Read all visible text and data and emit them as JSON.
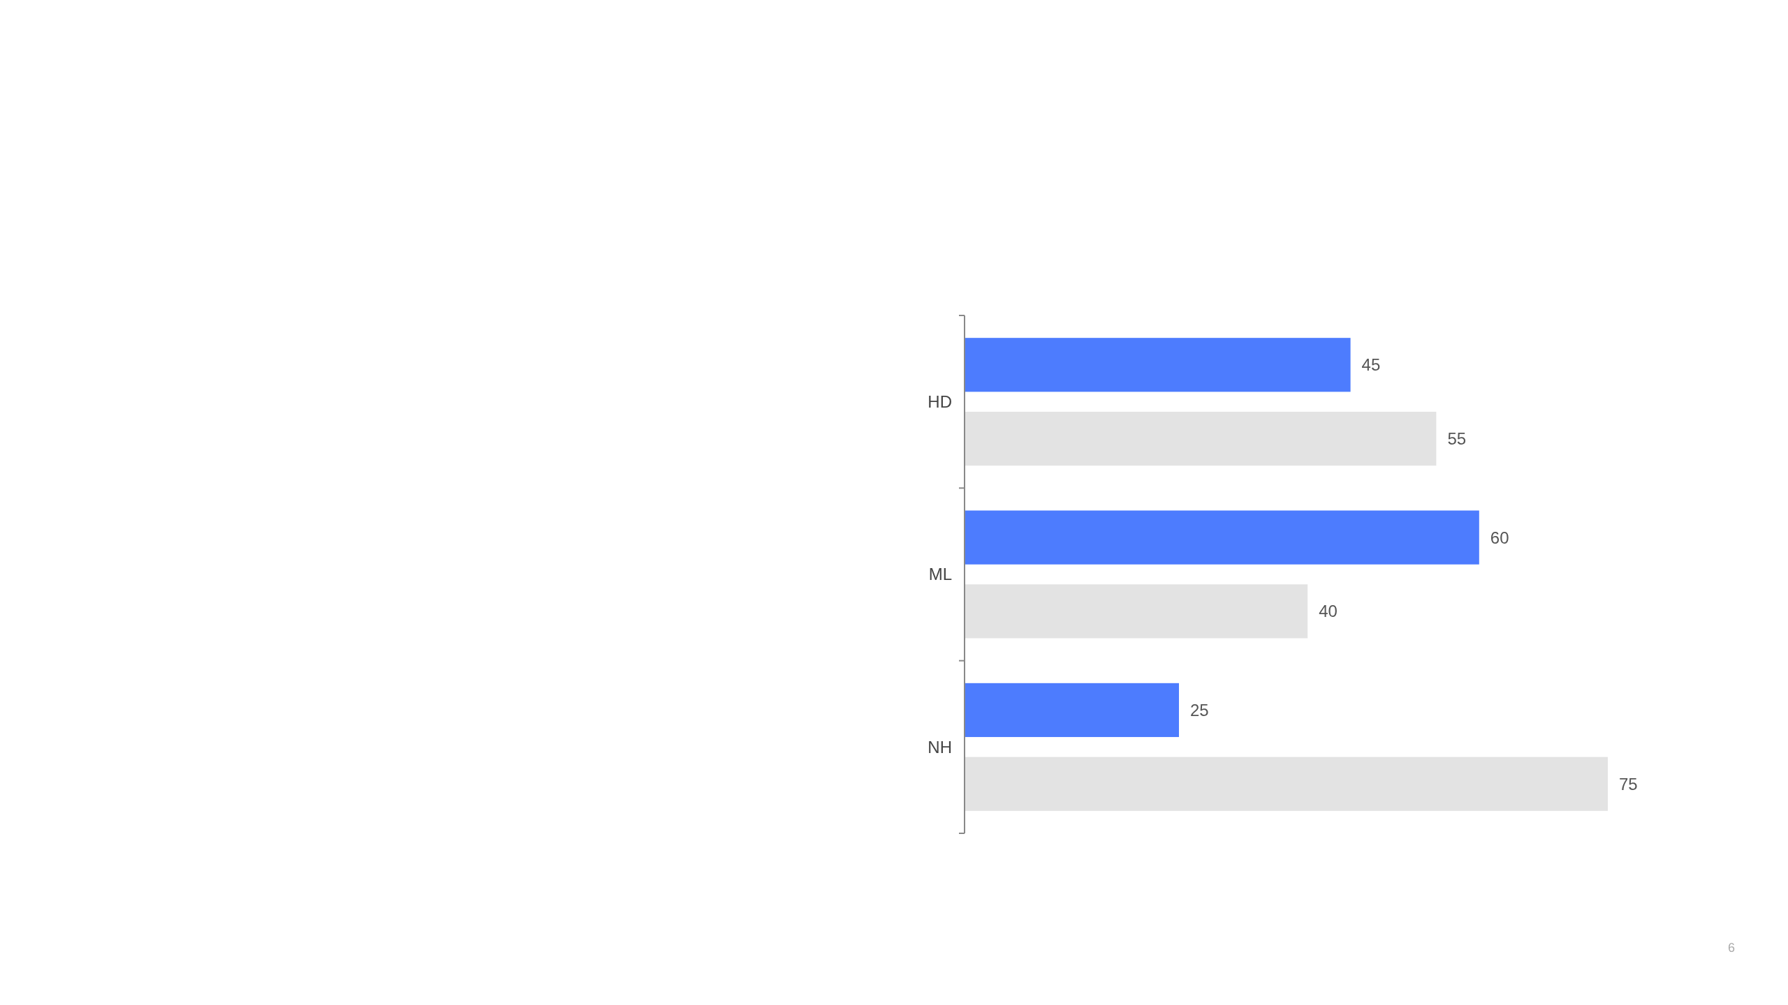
{
  "chart_data": {
    "type": "bar",
    "orientation": "horizontal",
    "categories": [
      "HD",
      "ML",
      "NH"
    ],
    "data_labels": true,
    "series": [
      {
        "color": "#4d7cfe",
        "values": [
          45,
          60,
          25
        ]
      },
      {
        "color": "#e3e3e3",
        "values": [
          55,
          40,
          75
        ]
      }
    ],
    "annotations": [
      "6"
    ]
  }
}
